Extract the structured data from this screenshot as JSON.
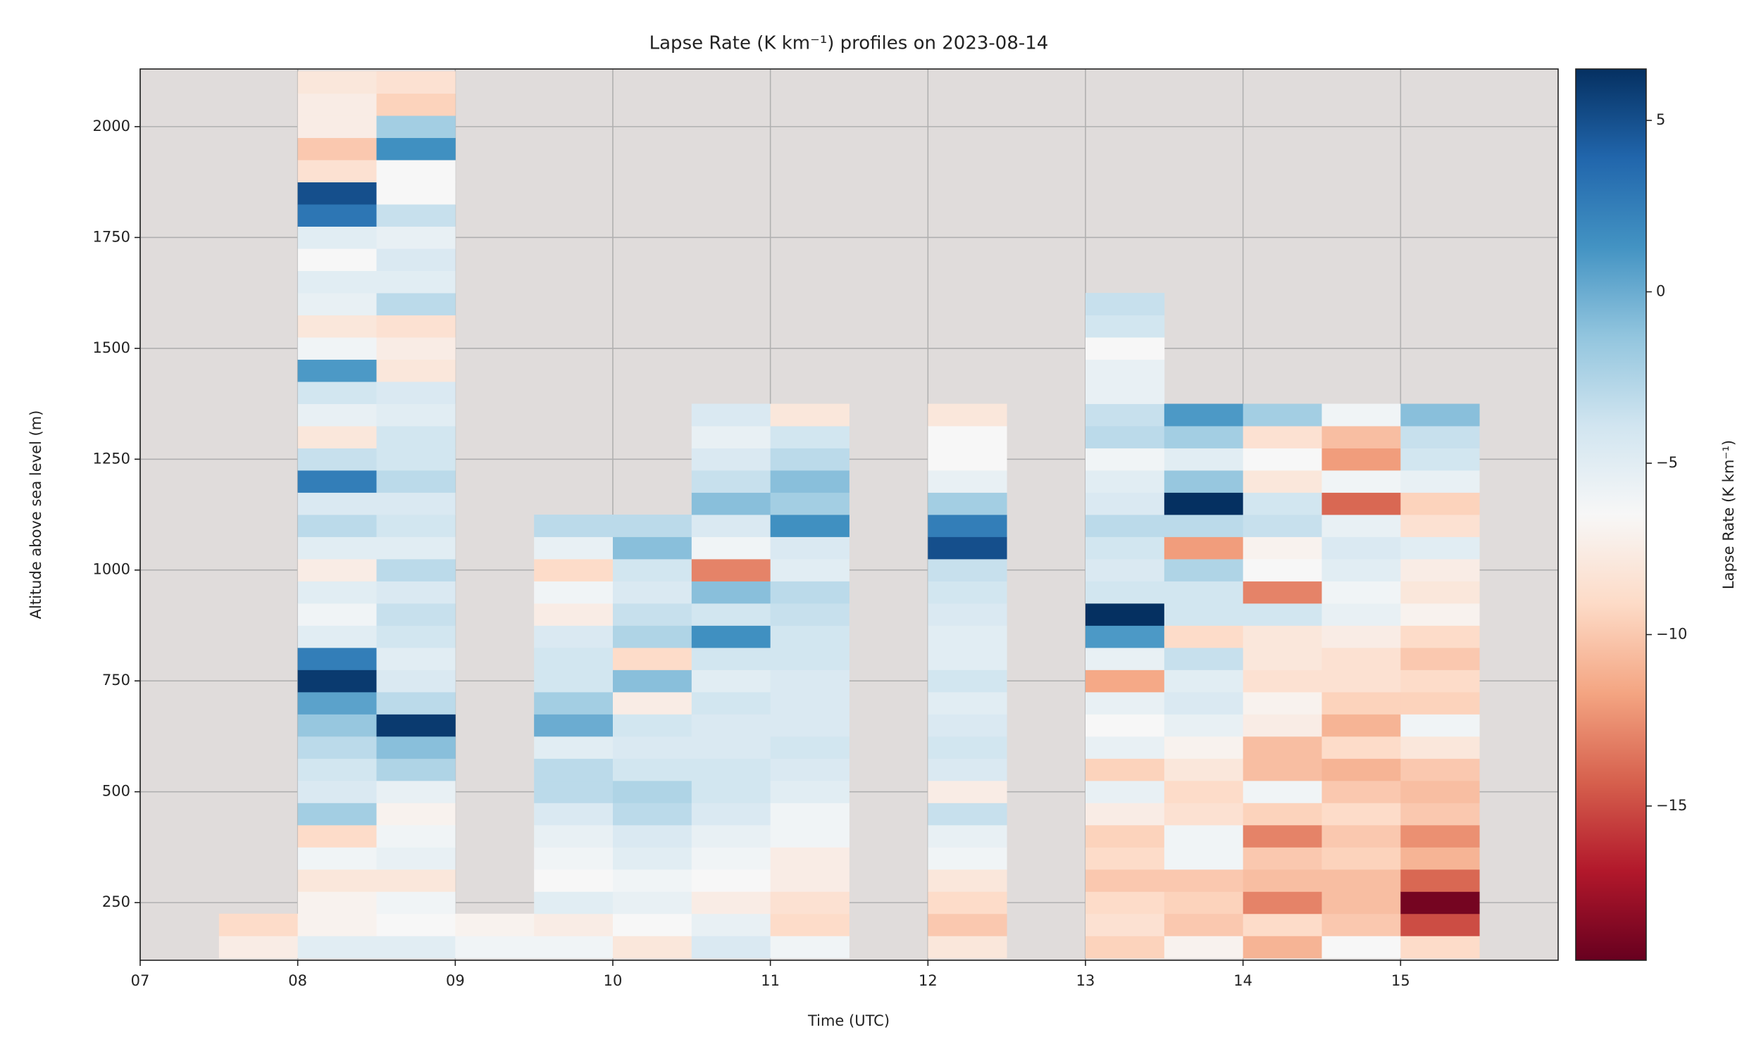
{
  "chart_data": {
    "type": "heatmap",
    "title": "Lapse Rate (K km⁻¹) profiles on 2023-08-14",
    "x_label": "Time (UTC)",
    "y_label": "Altitude above sea level (m)",
    "colorbar_label": "Lapse Rate (K km⁻¹)",
    "xlim": [
      7,
      16
    ],
    "ylim": [
      120,
      2130
    ],
    "clim": [
      -19.5,
      6.5
    ],
    "xticks": [
      {
        "value": 7,
        "label": "07"
      },
      {
        "value": 8,
        "label": "08"
      },
      {
        "value": 9,
        "label": "09"
      },
      {
        "value": 10,
        "label": "10"
      },
      {
        "value": 11,
        "label": "11"
      },
      {
        "value": 12,
        "label": "12"
      },
      {
        "value": 13,
        "label": "13"
      },
      {
        "value": 14,
        "label": "14"
      },
      {
        "value": 15,
        "label": "15"
      }
    ],
    "yticks": [
      250,
      500,
      750,
      1000,
      1250,
      1500,
      1750,
      2000
    ],
    "cticks": [
      5,
      0,
      {
        "value": -5,
        "label": "−5"
      },
      {
        "value": -10,
        "label": "−10"
      },
      {
        "value": -15,
        "label": "−15"
      }
    ],
    "grid": true,
    "background": "#e0dcdb",
    "colormap": [
      "#67001f",
      "#b2182b",
      "#d6604d",
      "#f4a582",
      "#fddbc7",
      "#f7f7f7",
      "#d1e5f0",
      "#92c5de",
      "#4393c3",
      "#2166ac",
      "#053061"
    ],
    "x": [
      [
        7.5,
        8
      ],
      [
        8,
        8.5
      ],
      [
        8.5,
        9
      ],
      [
        9,
        9.5
      ],
      [
        9.5,
        10
      ],
      [
        10,
        10.5
      ],
      [
        10.5,
        11
      ],
      [
        11,
        11.5
      ],
      [
        12,
        12.5
      ],
      [
        13,
        13.5
      ],
      [
        13.5,
        14
      ],
      [
        14,
        14.5
      ],
      [
        14.5,
        15
      ],
      [
        15,
        15.5
      ]
    ],
    "y_edges": [
      125,
      175,
      225,
      275,
      325,
      375,
      425,
      475,
      525,
      575,
      625,
      675,
      725,
      775,
      825,
      875,
      925,
      975,
      1025,
      1075,
      1125,
      1175,
      1225,
      1275,
      1325,
      1375,
      1425,
      1475,
      1525,
      1575,
      1625,
      1675,
      1725,
      1775,
      1825,
      1875,
      1925,
      1975,
      2025,
      2075,
      2125
    ],
    "z": [
      [
        -7.5,
        -9,
        null,
        null,
        null,
        null,
        null,
        null,
        null,
        null,
        null,
        null,
        null,
        null,
        null,
        null,
        null,
        null,
        null,
        null,
        null,
        null,
        null,
        null,
        null,
        null,
        null,
        null,
        null,
        null,
        null,
        null,
        null,
        null,
        null,
        null,
        null,
        null,
        null,
        null
      ],
      [
        -5,
        -7,
        -7,
        -8,
        -6,
        -9,
        -2,
        -4.5,
        -4,
        -3,
        -1.5,
        0.5,
        6,
        2.5,
        -5,
        -6,
        -5,
        -7.5,
        -5,
        -3,
        -4.5,
        2.5,
        -3.5,
        -8,
        -5.5,
        -4,
        1,
        -6,
        -8,
        -5.5,
        -5,
        -6.5,
        -5,
        3,
        5,
        -8.5,
        -10,
        -7.5,
        -7.5,
        -8
      ],
      [
        -5,
        -6.5,
        -6,
        -8,
        -5.5,
        -6,
        -7,
        -5.5,
        -2.5,
        -1,
        6,
        -3,
        -4.5,
        -5,
        -4,
        -3.5,
        -4.5,
        -3,
        -5,
        -4,
        -4.5,
        -3,
        -4,
        -4,
        -5,
        -4.5,
        -8,
        -7.5,
        -8.5,
        -3,
        -5,
        -4.5,
        -5.5,
        -3.5,
        -6.5,
        -6.5,
        1.5,
        -2,
        -9.5,
        -8.5
      ],
      [
        -6,
        -7,
        null,
        null,
        null,
        null,
        null,
        null,
        null,
        null,
        null,
        null,
        null,
        null,
        null,
        null,
        null,
        null,
        null,
        null,
        null,
        null,
        null,
        null,
        null,
        null,
        null,
        null,
        null,
        null,
        null,
        null,
        null,
        null,
        null,
        null,
        null,
        null,
        null,
        null
      ],
      [
        -6,
        -7.5,
        -5,
        -6.5,
        -6,
        -5.5,
        -4.5,
        -3,
        -3,
        -5,
        0,
        -2,
        -4,
        -4,
        -4.5,
        -7.5,
        -6,
        -9,
        -5.5,
        -3,
        null,
        null,
        null,
        null,
        null,
        null,
        null,
        null,
        null,
        null,
        null,
        null,
        null,
        null,
        null,
        null,
        null,
        null,
        null,
        null
      ],
      [
        -8,
        -6.5,
        -5.5,
        -6,
        -5,
        -4.5,
        -3,
        -2.5,
        -4,
        -4.5,
        -4,
        -7.5,
        -1,
        -9,
        -2.5,
        -3.5,
        -4.5,
        -4,
        -1,
        -3,
        null,
        null,
        null,
        null,
        null,
        null,
        null,
        null,
        null,
        null,
        null,
        null,
        null,
        null,
        null,
        null,
        null,
        null,
        null,
        null
      ],
      [
        -4.5,
        -5.5,
        -7.5,
        -6.5,
        -6,
        -5.5,
        -4.5,
        -4,
        -4,
        -4.5,
        -4.5,
        -4,
        -5,
        -4,
        1.5,
        -4,
        -1,
        -13,
        -6,
        -4.5,
        -1,
        -3.5,
        -4.5,
        -5.5,
        -4.5,
        null,
        null,
        null,
        null,
        null,
        null,
        null,
        null,
        null,
        null,
        null,
        null,
        null,
        null,
        null
      ],
      [
        -6,
        -9,
        -8.5,
        -7.5,
        -7.5,
        -6,
        -6,
        -5,
        -4.5,
        -4,
        -4.5,
        -4.5,
        -4.5,
        -4,
        -4,
        -3.5,
        -3,
        -5,
        -4.5,
        1.5,
        -2,
        -1,
        -3,
        -4,
        -8,
        null,
        null,
        null,
        null,
        null,
        null,
        null,
        null,
        null,
        null,
        null,
        null,
        null,
        null,
        null
      ],
      [
        -8,
        -10,
        -9,
        -8,
        -6,
        -5.5,
        -3.5,
        -7.5,
        -4.5,
        -4,
        -4.5,
        -5,
        -4,
        -5,
        -5,
        -4.5,
        -4,
        -3.5,
        5,
        2.5,
        -2,
        -5.5,
        -6.5,
        -6.5,
        -8,
        null,
        null,
        null,
        null,
        null,
        null,
        null,
        null,
        null,
        null,
        null,
        null,
        null,
        null,
        null
      ],
      [
        -9.5,
        -8.5,
        -9,
        -10,
        -9,
        -9.5,
        -7.5,
        -5.5,
        -9.5,
        -5.5,
        -6.5,
        -5.5,
        -11.5,
        -5.5,
        1,
        6.5,
        -4,
        -4.5,
        -4,
        -3,
        -4.5,
        -5,
        -6,
        -3,
        -3.5,
        -5.5,
        -5.5,
        -6.5,
        -4,
        -3.5,
        null,
        null,
        null,
        null,
        null,
        null,
        null,
        null,
        null,
        null
      ],
      [
        -7,
        -10,
        -9.5,
        -10,
        -6,
        -6,
        -8.5,
        -9,
        -8,
        -7,
        -5.5,
        -4.5,
        -5,
        -3.5,
        -9,
        -4,
        -4,
        -2.5,
        -12,
        -3,
        6.5,
        -1.5,
        -5,
        -2,
        1,
        null,
        null,
        null,
        null,
        null,
        null,
        null,
        null,
        null,
        null,
        null,
        null,
        null,
        null,
        null
      ],
      [
        -11,
        -9,
        -13,
        -10.5,
        -10,
        -13,
        -9.5,
        -6,
        -10.5,
        -10.5,
        -7.5,
        -7,
        -8.5,
        -8,
        -8,
        -4,
        -13,
        -6.5,
        -7,
        -3.5,
        -4,
        -8,
        -6.5,
        -8.5,
        -2,
        null,
        null,
        null,
        null,
        null,
        null,
        null,
        null,
        null,
        null,
        null,
        null,
        null,
        null,
        null
      ],
      [
        -6.5,
        -10,
        -10.5,
        -10.5,
        -9.5,
        -10,
        -9,
        -10,
        -11,
        -9,
        -11,
        -9.5,
        -8.5,
        -8.5,
        -7.5,
        -5.5,
        -6,
        -5,
        -4.5,
        -5.5,
        -14,
        -6,
        -12,
        -10.5,
        -6,
        null,
        null,
        null,
        null,
        null,
        null,
        null,
        null,
        null,
        null,
        null,
        null,
        null,
        null,
        null
      ],
      [
        -9,
        -15,
        -19,
        -14,
        -11,
        -12.5,
        -10,
        -10.5,
        -10,
        -8,
        -6,
        -9.5,
        -9,
        -10,
        -9,
        -7,
        -8,
        -7.5,
        -5,
        -8.5,
        -9.5,
        -5.5,
        -4,
        -3.5,
        -1,
        null,
        null,
        null,
        null,
        null,
        null,
        null,
        null,
        null,
        null,
        null,
        null,
        null,
        null,
        null
      ]
    ]
  }
}
